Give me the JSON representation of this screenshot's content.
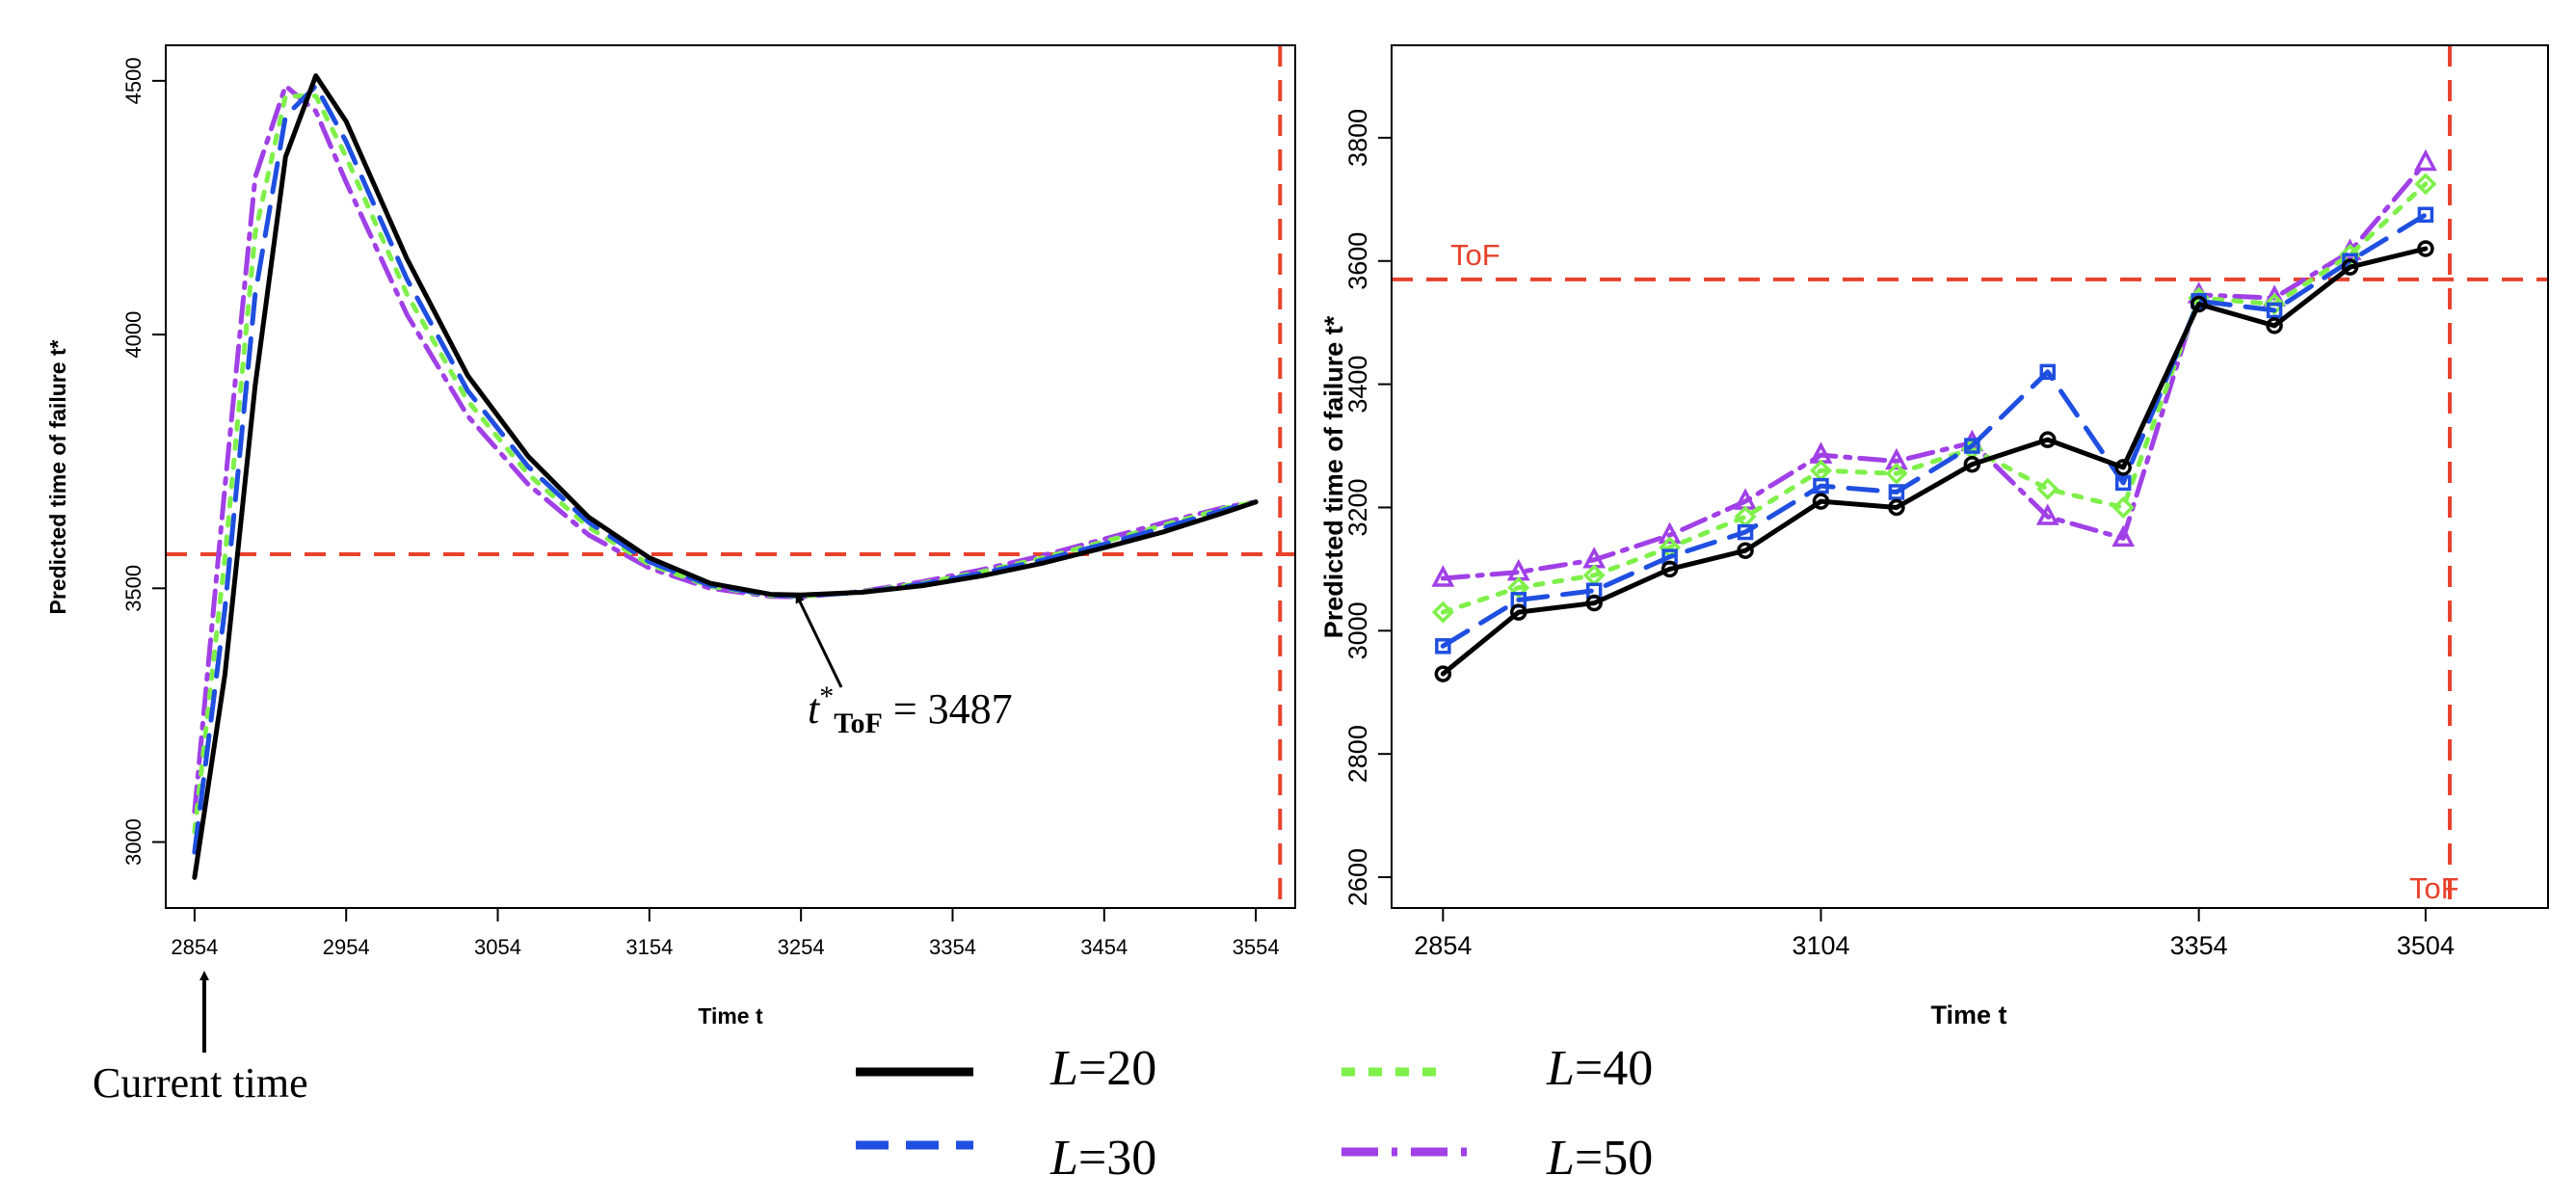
{
  "colors": {
    "L20": "#000000",
    "L30": "#1f4fe0",
    "L40": "#7ff04a",
    "L50": "#a040e6",
    "tof": "#e8412c"
  },
  "legend": {
    "items": [
      {
        "key": "L20",
        "var": "L",
        "label": "=20"
      },
      {
        "key": "L30",
        "var": "L",
        "label": "=30"
      },
      {
        "key": "L40",
        "var": "L",
        "label": "=40"
      },
      {
        "key": "L50",
        "var": "L",
        "label": "=50"
      }
    ]
  },
  "annotations": {
    "current_time": "Current time",
    "tof_eq_main": "t",
    "tof_eq_sup": "*",
    "tof_eq_sub": "ToF",
    "tof_eq_value": " = 3487",
    "tof_label": "ToF"
  },
  "chart_data": [
    {
      "type": "line",
      "title": "",
      "xlabel": "Time t",
      "ylabel": "Predicted time of failure t*",
      "xlim": [
        2835,
        3580
      ],
      "ylim": [
        2870,
        4570
      ],
      "xticks": [
        2854,
        2954,
        3054,
        3154,
        3254,
        3354,
        3454,
        3554
      ],
      "yticks": [
        3000,
        3500,
        4000,
        4500
      ],
      "hline": 3567,
      "vline": 3570,
      "series": [
        {
          "name": "L=20",
          "key": "L20",
          "x": [
            2854,
            2874,
            2894,
            2914,
            2934,
            2954,
            2994,
            3034,
            3074,
            3114,
            3154,
            3194,
            3234,
            3254,
            3294,
            3334,
            3374,
            3414,
            3454,
            3494,
            3534,
            3554
          ],
          "y": [
            2930,
            3330,
            3900,
            4350,
            4510,
            4420,
            4150,
            3920,
            3760,
            3640,
            3560,
            3510,
            3488,
            3487,
            3492,
            3505,
            3525,
            3550,
            3580,
            3612,
            3650,
            3670
          ]
        },
        {
          "name": "L=30",
          "key": "L30",
          "x": [
            2854,
            2874,
            2894,
            2914,
            2934,
            2954,
            2994,
            3034,
            3074,
            3114,
            3154,
            3194,
            3234,
            3254,
            3294,
            3334,
            3374,
            3414,
            3454,
            3494,
            3534,
            3554
          ],
          "y": [
            2980,
            3460,
            4080,
            4430,
            4490,
            4380,
            4110,
            3890,
            3740,
            3630,
            3552,
            3506,
            3487,
            3485,
            3492,
            3508,
            3530,
            3556,
            3587,
            3620,
            3655,
            3670
          ]
        },
        {
          "name": "L=40",
          "key": "L40",
          "x": [
            2854,
            2874,
            2894,
            2914,
            2934,
            2954,
            2994,
            3034,
            3074,
            3114,
            3154,
            3194,
            3234,
            3254,
            3294,
            3334,
            3374,
            3414,
            3454,
            3494,
            3534,
            3554
          ],
          "y": [
            3020,
            3560,
            4200,
            4470,
            4470,
            4350,
            4080,
            3870,
            3725,
            3620,
            3547,
            3504,
            3486,
            3484,
            3493,
            3510,
            3533,
            3560,
            3592,
            3625,
            3658,
            3670
          ]
        },
        {
          "name": "L=50",
          "key": "L50",
          "x": [
            2854,
            2874,
            2894,
            2914,
            2934,
            2954,
            2994,
            3034,
            3074,
            3114,
            3154,
            3194,
            3234,
            3254,
            3294,
            3334,
            3374,
            3414,
            3454,
            3494,
            3534,
            3554
          ],
          "y": [
            3060,
            3700,
            4310,
            4490,
            4440,
            4300,
            4040,
            3840,
            3705,
            3605,
            3540,
            3500,
            3484,
            3483,
            3494,
            3513,
            3537,
            3565,
            3597,
            3630,
            3660,
            3670
          ]
        }
      ]
    },
    {
      "type": "line",
      "title": "",
      "xlabel": "Time t",
      "ylabel": "Predicted time of failure t*",
      "xlim": [
        2820,
        3585
      ],
      "ylim": [
        2550,
        3950
      ],
      "xticks": [
        2854,
        3104,
        3354,
        3504
      ],
      "yticks": [
        2600,
        2800,
        3000,
        3200,
        3400,
        3600,
        3800
      ],
      "hline": 3570,
      "vline": 3520,
      "x": [
        2854,
        2904,
        2954,
        3004,
        3054,
        3104,
        3154,
        3204,
        3254,
        3304,
        3354,
        3404,
        3454,
        3504
      ],
      "series": [
        {
          "name": "L=20",
          "key": "L20",
          "marker": "circle",
          "values": [
            2930,
            3030,
            3045,
            3100,
            3130,
            3210,
            3200,
            3270,
            3310,
            3265,
            3530,
            3495,
            3590,
            3620
          ]
        },
        {
          "name": "L=30",
          "key": "L30",
          "marker": "square",
          "values": [
            2975,
            3050,
            3065,
            3120,
            3160,
            3235,
            3225,
            3300,
            3420,
            3240,
            3535,
            3520,
            3600,
            3675
          ]
        },
        {
          "name": "L=40",
          "key": "L40",
          "marker": "diamond",
          "values": [
            3030,
            3070,
            3090,
            3135,
            3185,
            3260,
            3255,
            3295,
            3230,
            3200,
            3540,
            3530,
            3610,
            3725
          ]
        },
        {
          "name": "L=50",
          "key": "L50",
          "marker": "triangle",
          "values": [
            3085,
            3095,
            3115,
            3155,
            3210,
            3285,
            3275,
            3305,
            3185,
            3150,
            3545,
            3540,
            3615,
            3760
          ]
        }
      ]
    }
  ]
}
